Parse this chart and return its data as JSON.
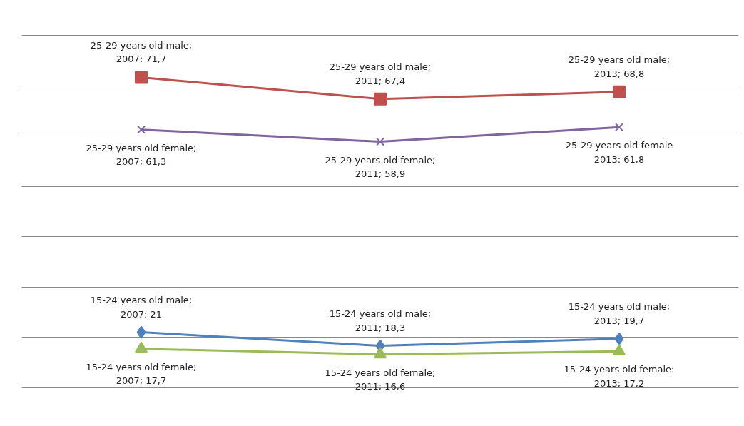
{
  "chart_data": {
    "type": "line",
    "categories": [
      null,
      null,
      null
    ],
    "tick_labels": false,
    "grid": "y",
    "series": [
      {
        "color": "#c0504d",
        "marker": "square",
        "values": [
          71.7,
          67.4,
          68.8
        ],
        "value_labels": [
          "25-29 years old male;\n2007: 71,7",
          "25-29 years old male;\n2011; 67,4",
          "25-29 years old male;\n2013; 68,8"
        ]
      },
      {
        "color": "#8064a2",
        "marker": "cross",
        "values": [
          61.3,
          58.9,
          61.8
        ],
        "value_labels": [
          "25-29 years old female;\n2007; 61,3",
          "25-29 years old female;\n2011; 58,9",
          "25-29 years old female\n2013: 61,8"
        ]
      },
      {
        "color": "#4f81bd",
        "marker": "diamond",
        "values": [
          21,
          18.3,
          19.7
        ],
        "value_labels": [
          "15-24 years old male;\n2007: 21",
          "15-24 years old male;\n2011; 18,3",
          "15-24 years old male;\n2013; 19,7"
        ]
      },
      {
        "color": "#9bbb59",
        "marker": "triangle",
        "values": [
          17.7,
          16.6,
          17.2
        ],
        "value_labels": [
          "15-24 years old female;\n2007; 17,7",
          "15-24 years old female;\n2011; 16,6",
          "15-24 years old female:\n2013; 17,2"
        ]
      }
    ]
  }
}
